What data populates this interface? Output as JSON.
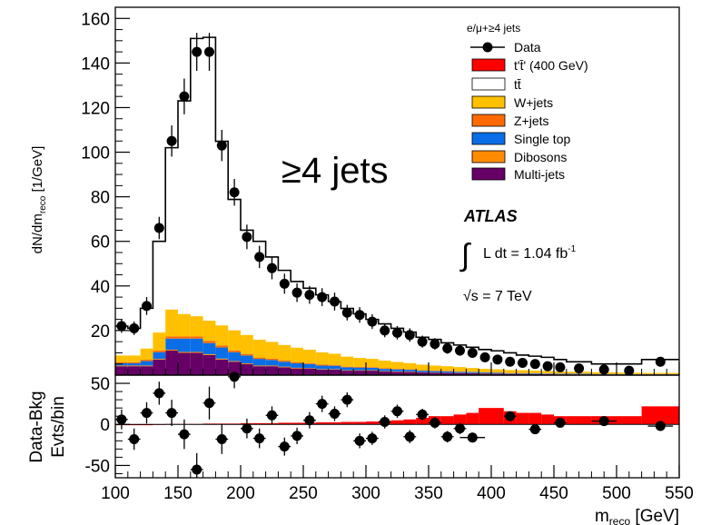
{
  "chart_data": [
    {
      "type": "bar",
      "panel": "main",
      "xlabel_main": "m",
      "xlabel_sub": "reco",
      "xlabel_unit": " [GeV]",
      "ylabel_main": "dN/dm",
      "ylabel_sub": "reco",
      "ylabel_unit": " [1/GeV]",
      "xlim": [
        100,
        550
      ],
      "ylim": [
        0,
        165
      ],
      "xticks": [
        100,
        150,
        200,
        250,
        300,
        350,
        400,
        450,
        500,
        550
      ],
      "yticks": [
        20,
        40,
        60,
        80,
        100,
        120,
        140,
        160
      ],
      "bin_edges": [
        100,
        110,
        120,
        130,
        140,
        150,
        160,
        170,
        180,
        190,
        200,
        210,
        220,
        230,
        240,
        250,
        260,
        270,
        280,
        290,
        300,
        310,
        320,
        330,
        340,
        350,
        360,
        370,
        380,
        390,
        400,
        410,
        420,
        430,
        440,
        450,
        460,
        480,
        500,
        520,
        550
      ],
      "stack": [
        {
          "name": "Multi-jets",
          "color": "#660066",
          "values": [
            4,
            4,
            4,
            7,
            11,
            10,
            10,
            9,
            7,
            6,
            5,
            4,
            4,
            3.5,
            3,
            3,
            2.5,
            2.5,
            2,
            2,
            2,
            1.6,
            1.5,
            1.4,
            1.2,
            1.1,
            1,
            0.9,
            0.8,
            0.7,
            0.6,
            0.5,
            0.5,
            0.4,
            0.4,
            0.3,
            0.3,
            0.2,
            0.2,
            0.2
          ]
        },
        {
          "name": "Dibosons",
          "color": "#FF8C00",
          "values": [
            0.3,
            0.3,
            0.3,
            0.3,
            0.4,
            0.4,
            0.4,
            0.4,
            0.4,
            0.3,
            0.3,
            0.3,
            0.3,
            0.3,
            0.3,
            0.2,
            0.2,
            0.2,
            0.2,
            0.2,
            0.2,
            0.2,
            0.2,
            0.2,
            0.1,
            0.1,
            0.1,
            0.1,
            0.1,
            0.1,
            0.1,
            0.1,
            0.1,
            0.1,
            0.1,
            0.1,
            0.1,
            0.1,
            0.1,
            0.1
          ]
        },
        {
          "name": "Single top",
          "color": "#0A6EE6",
          "values": [
            1,
            1,
            2,
            3,
            5,
            6,
            6,
            5,
            5,
            4,
            3.5,
            3,
            2.5,
            2.2,
            2,
            1.8,
            1.6,
            1.5,
            1.3,
            1.2,
            1.1,
            1,
            0.9,
            0.8,
            0.7,
            0.6,
            0.6,
            0.5,
            0.5,
            0.4,
            0.4,
            0.3,
            0.3,
            0.3,
            0.2,
            0.2,
            0.2,
            0.2,
            0.1,
            0.1
          ]
        },
        {
          "name": "Z+jets",
          "color": "#FF6A00",
          "values": [
            0.5,
            0.5,
            0.6,
            0.8,
            1,
            1,
            1,
            1,
            0.9,
            0.8,
            0.7,
            0.6,
            0.6,
            0.5,
            0.5,
            0.4,
            0.4,
            0.4,
            0.3,
            0.3,
            0.3,
            0.3,
            0.2,
            0.2,
            0.2,
            0.2,
            0.2,
            0.2,
            0.1,
            0.1,
            0.1,
            0.1,
            0.1,
            0.1,
            0.1,
            0.1,
            0.1,
            0.1,
            0.1,
            0.1
          ]
        },
        {
          "name": "W+jets",
          "color": "#FFC000",
          "values": [
            3,
            3,
            5,
            8,
            12,
            10,
            9,
            9,
            9,
            9,
            8.5,
            8,
            7.5,
            7,
            6.5,
            6,
            5.5,
            5,
            4.5,
            4,
            3.7,
            3.4,
            3.1,
            2.8,
            2.5,
            2.3,
            2.1,
            1.9,
            1.7,
            1.5,
            1.4,
            1.3,
            1.2,
            1.1,
            1,
            0.9,
            0.8,
            0.7,
            0.6,
            0.5
          ]
        },
        {
          "name": "tt̄",
          "color": "#FFFFFF",
          "values": [
            13.2,
            12.2,
            18.1,
            40.9,
            72.6,
            95.6,
            124.6,
            127.1,
            82.6,
            58.7,
            47,
            44.1,
            38.1,
            33.5,
            29.7,
            27.6,
            25.8,
            23.4,
            21.6,
            19.8,
            17.7,
            16.5,
            15.1,
            13.9,
            12.3,
            11.7,
            10.5,
            9.9,
            9.3,
            8.7,
            8.3,
            7.7,
            6.8,
            6.5,
            6.2,
            5.4,
            4.5,
            3.7,
            3.9,
            6.0
          ]
        }
      ],
      "data_points": {
        "x": [
          105,
          115,
          125,
          135,
          145,
          155,
          165,
          175,
          185,
          195,
          205,
          215,
          225,
          235,
          245,
          255,
          265,
          275,
          285,
          295,
          305,
          315,
          325,
          335,
          345,
          355,
          365,
          375,
          385,
          395,
          405,
          415,
          425,
          435,
          445,
          455,
          470,
          490,
          510,
          535
        ],
        "y": [
          22,
          21,
          31,
          66,
          105,
          125,
          145,
          145,
          103,
          82,
          62,
          53,
          48,
          41,
          37,
          36,
          35,
          33,
          28,
          27,
          24,
          20,
          19,
          18,
          15,
          14,
          12,
          11,
          10,
          8,
          7,
          6,
          5.5,
          5,
          4,
          3.5,
          3,
          2.5,
          2,
          6
        ],
        "yerr": [
          3,
          3,
          4,
          5,
          7,
          8,
          8.5,
          8.5,
          7,
          6,
          5.5,
          5,
          5,
          4.5,
          4.2,
          4,
          4,
          4,
          3.5,
          3.5,
          3.3,
          3,
          3,
          3,
          2.7,
          2.6,
          2.4,
          2.3,
          2.2,
          2,
          1.9,
          1.8,
          1.7,
          1.6,
          1.5,
          1.4,
          1.3,
          1.2,
          1.1,
          1.5
        ]
      },
      "legend": {
        "title": "e/μ+≥4 jets",
        "placement": "top-right",
        "entries": [
          "Data",
          "t't̄' (400 GeV)",
          "tt̄",
          "W+jets",
          "Z+jets",
          "Single top",
          "Dibosons",
          "Multi-jets"
        ],
        "tprime_color": "#FF0000"
      },
      "annotations": {
        "jets": "≥4 jets",
        "atlas": "ATLAS",
        "lumi_integral": "∫",
        "lumi_text": "L dt =  1.04 fb",
        "lumi_exp": "-1",
        "energy_sqrt": "√",
        "energy_text": "s =  7 TeV"
      }
    },
    {
      "type": "scatter",
      "panel": "ratio",
      "ylabel_line1": "Data-Bkg",
      "ylabel_line2": "Evts/bin",
      "ylim": [
        -65,
        60
      ],
      "yticks": [
        -50,
        0,
        50
      ],
      "tprime_band": {
        "color": "#FF0000",
        "bin_edges": [
          100,
          110,
          120,
          130,
          140,
          150,
          160,
          170,
          180,
          190,
          200,
          210,
          220,
          230,
          240,
          250,
          260,
          270,
          280,
          290,
          300,
          310,
          320,
          330,
          340,
          350,
          360,
          370,
          380,
          390,
          400,
          410,
          420,
          430,
          440,
          450,
          460,
          480,
          500,
          520,
          550
        ],
        "values": [
          -1,
          -1,
          -1,
          0,
          0.5,
          0.5,
          0.5,
          1,
          1,
          1,
          1.5,
          1.5,
          1.5,
          2,
          2,
          2,
          2.5,
          2.5,
          3,
          3,
          3.5,
          4,
          5,
          6,
          8,
          10,
          10,
          12,
          14,
          20,
          20,
          16,
          14,
          14,
          12,
          10,
          10,
          10,
          10,
          22
        ]
      },
      "points": {
        "x": [
          105,
          115,
          125,
          135,
          145,
          155,
          165,
          175,
          185,
          195,
          205,
          215,
          225,
          235,
          245,
          255,
          265,
          275,
          285,
          295,
          305,
          315,
          325,
          335,
          345,
          355,
          365,
          375,
          385,
          415,
          435,
          455,
          490,
          535
        ],
        "y": [
          6,
          -18,
          14,
          38,
          14,
          -12,
          -55,
          26,
          -18,
          58,
          -5,
          -17,
          11,
          -27,
          -14,
          5,
          25,
          13,
          30,
          -20,
          -17,
          3,
          16,
          -15,
          12,
          2,
          -15,
          -5,
          -16,
          10,
          -6,
          2,
          4,
          -2
        ],
        "yerr": [
          12,
          13,
          13,
          14,
          16,
          18,
          20,
          20,
          18,
          14,
          12,
          12,
          11,
          11,
          10,
          10,
          10,
          9,
          9,
          9,
          8,
          8,
          8,
          8,
          7,
          7,
          7,
          7,
          6,
          5,
          5,
          5,
          4,
          5
        ],
        "xerr": [
          5,
          5,
          5,
          5,
          5,
          5,
          5,
          5,
          5,
          5,
          5,
          5,
          5,
          5,
          5,
          5,
          5,
          5,
          5,
          5,
          5,
          5,
          5,
          5,
          5,
          5,
          5,
          5,
          10,
          5,
          5,
          5,
          10,
          10
        ]
      }
    }
  ]
}
